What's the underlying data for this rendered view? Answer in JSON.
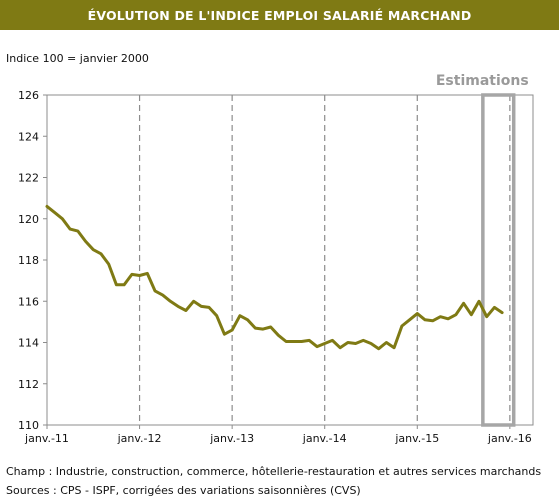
{
  "header": {
    "title": "ÉVOLUTION DE L'INDICE EMPLOI SALARIÉ MARCHAND",
    "subtitle": "Indice 100 = janvier 2000"
  },
  "footer": {
    "champ": "Champ : Industrie, construction, commerce, hôtellerie-restauration et autres services marchands",
    "sources": "Sources : CPS - ISPF, corrigées des variations saisonnières (CVS)"
  },
  "colors": {
    "title_bg": "#7f7a14",
    "line": "#7f7a14",
    "estimation_box": "#a6a6a6"
  },
  "chart_data": {
    "type": "line",
    "title": "ÉVOLUTION DE L'INDICE EMPLOI SALARIÉ MARCHAND",
    "ylabel": "Indice 100 = janvier 2000",
    "ylim": [
      110,
      126
    ],
    "yticks": [
      110,
      112,
      114,
      116,
      118,
      120,
      122,
      124,
      126
    ],
    "xticks": [
      "janv.-11",
      "janv.-12",
      "janv.-13",
      "janv.-14",
      "janv.-15",
      "janv.-16"
    ],
    "grid": "vertical dashed at each January",
    "annotation": "Estimations",
    "estimation_range": [
      "2015-10",
      "2016-01"
    ],
    "series": [
      {
        "x": [
          "2011-01",
          "2011-02",
          "2011-03",
          "2011-04",
          "2011-05",
          "2011-06",
          "2011-07",
          "2011-08",
          "2011-09",
          "2011-10",
          "2011-11",
          "2011-12",
          "2012-01",
          "2012-02",
          "2012-03",
          "2012-04",
          "2012-05",
          "2012-06",
          "2012-07",
          "2012-08",
          "2012-09",
          "2012-10",
          "2012-11",
          "2012-12",
          "2013-01",
          "2013-02",
          "2013-03",
          "2013-04",
          "2013-05",
          "2013-06",
          "2013-07",
          "2013-08",
          "2013-09",
          "2013-10",
          "2013-11",
          "2013-12",
          "2014-01",
          "2014-02",
          "2014-03",
          "2014-04",
          "2014-05",
          "2014-06",
          "2014-07",
          "2014-08",
          "2014-09",
          "2014-10",
          "2014-11",
          "2014-12",
          "2015-01",
          "2015-02",
          "2015-03",
          "2015-04",
          "2015-05",
          "2015-06",
          "2015-07",
          "2015-08",
          "2015-09",
          "2015-10",
          "2015-11",
          "2015-12"
        ],
        "values": [
          120.6,
          120.3,
          120.0,
          119.5,
          119.4,
          118.9,
          118.5,
          118.3,
          117.8,
          116.8,
          116.8,
          117.3,
          117.25,
          117.35,
          116.5,
          116.3,
          116.0,
          115.75,
          115.55,
          116.0,
          115.75,
          115.7,
          115.3,
          114.4,
          114.6,
          115.3,
          115.1,
          114.7,
          114.65,
          114.75,
          114.35,
          114.05,
          114.05,
          114.05,
          114.1,
          113.8,
          113.95,
          114.1,
          113.75,
          114.0,
          113.95,
          114.1,
          113.95,
          113.7,
          114.0,
          113.75,
          114.8,
          115.1,
          115.4,
          115.1,
          115.05,
          115.25,
          115.15,
          115.35,
          115.9,
          115.35,
          116.0,
          115.25,
          115.7,
          115.45
        ]
      }
    ]
  }
}
